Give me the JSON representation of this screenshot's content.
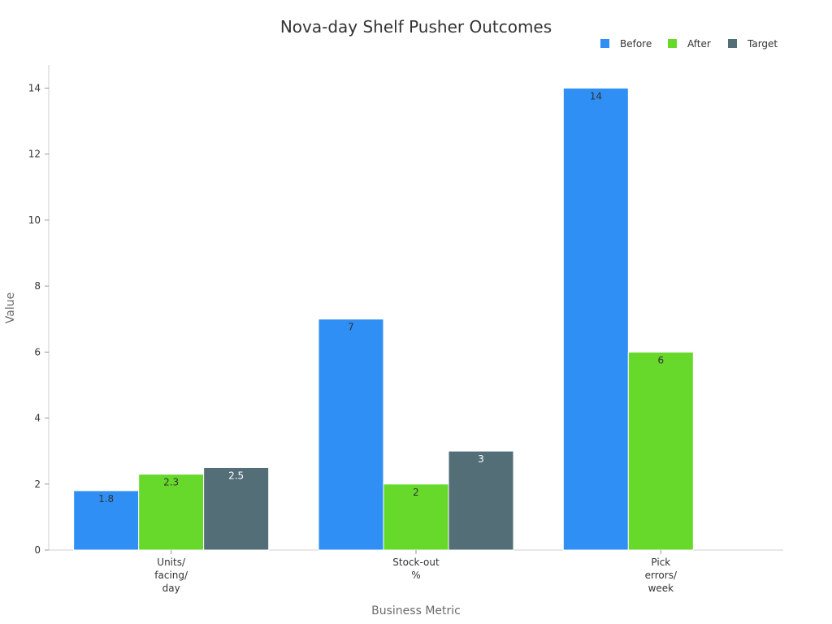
{
  "chart_data": {
    "type": "bar",
    "title": "Nova-day Shelf Pusher Outcomes",
    "xlabel": "Business Metric",
    "ylabel": "Value",
    "categories": [
      [
        "Units/",
        "facing/",
        "day"
      ],
      [
        "Stock-out",
        "%"
      ],
      [
        "Pick",
        "errors/",
        "week"
      ]
    ],
    "series": [
      {
        "name": "Before",
        "color": "#2f8ff5",
        "values": [
          1.8,
          7,
          14
        ]
      },
      {
        "name": "After",
        "color": "#66d92b",
        "values": [
          2.3,
          2,
          6
        ]
      },
      {
        "name": "Target",
        "color": "#546e78",
        "values": [
          2.5,
          3,
          null
        ]
      }
    ],
    "ylim": [
      0,
      14.7
    ],
    "yticks": [
      0,
      2,
      4,
      6,
      8,
      10,
      12,
      14
    ],
    "grid": false,
    "legend_position": "top-right",
    "data_label_colors": {
      "Before": "#333333",
      "After": "#333333",
      "Target": "#ffffff"
    }
  }
}
